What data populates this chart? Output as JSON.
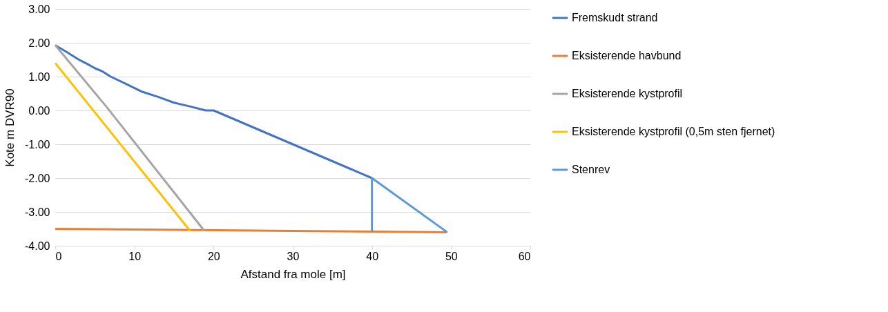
{
  "chart_data": {
    "type": "line",
    "xlabel": "Afstand fra mole [m]",
    "ylabel": "Kote m DVR90",
    "xlim": [
      0,
      60
    ],
    "xticks": [
      0,
      10,
      20,
      30,
      40,
      50,
      60
    ],
    "ylim": [
      -4,
      3
    ],
    "yticks": [
      {
        "value": -4,
        "label": "-4.00"
      },
      {
        "value": -3,
        "label": "-3.00"
      },
      {
        "value": -2,
        "label": "-2.00"
      },
      {
        "value": -1,
        "label": "-1.00"
      },
      {
        "value": 0,
        "label": "0.00"
      },
      {
        "value": 1,
        "label": "1.00"
      },
      {
        "value": 2,
        "label": "2.00"
      },
      {
        "value": 3,
        "label": "3.00"
      }
    ],
    "grid": "y",
    "legend": "right",
    "marker": "none",
    "line_style": "solid",
    "series": [
      {
        "name": "Fremskudt strand",
        "color": "#4472c4",
        "x": [
          0,
          1.5,
          3,
          4,
          5,
          6,
          7,
          9,
          11,
          13,
          15,
          17,
          19,
          20,
          40
        ],
        "values": [
          1.93,
          1.72,
          1.5,
          1.38,
          1.25,
          1.15,
          1.0,
          0.78,
          0.55,
          0.4,
          0.23,
          0.12,
          0.0,
          0.0,
          -2.0
        ]
      },
      {
        "name": "Eksisterende havbund",
        "color": "#ed7d31",
        "x": [
          0,
          49.5
        ],
        "values": [
          -3.5,
          -3.6
        ]
      },
      {
        "name": "Eksisterende kystprofil",
        "color": "#a5a5a5",
        "x": [
          0,
          6.5,
          18.8
        ],
        "values": [
          1.93,
          0.1,
          -3.55
        ]
      },
      {
        "name": "Eksisterende kystprofil (0,5m sten fjernet)",
        "color": "#ffc000",
        "x": [
          0,
          17
        ],
        "values": [
          1.4,
          -3.55
        ]
      },
      {
        "name": "Stenrev",
        "color": "#5b9bd5",
        "x": [
          40,
          40,
          49.5
        ],
        "values": [
          -3.6,
          -2.0,
          -3.6
        ]
      }
    ]
  }
}
